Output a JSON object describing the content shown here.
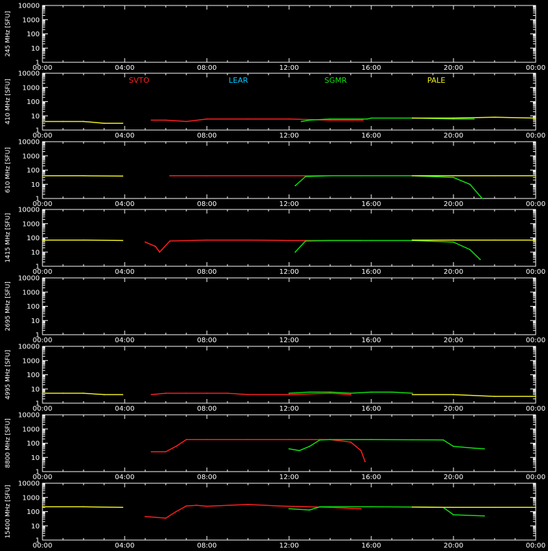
{
  "chart_data": {
    "type": "line",
    "background": "#000000",
    "grid": false,
    "x_ticks": [
      "00:00",
      "04:00",
      "08:00",
      "12:00",
      "16:00",
      "20:00",
      "00:00"
    ],
    "y_scale": "log",
    "y_ticks": [
      "1",
      "10",
      "100",
      "1000",
      "10000"
    ],
    "ylim": [
      1,
      10000
    ],
    "xlim_hours": [
      0,
      24
    ],
    "stations": [
      {
        "name": "SVTO",
        "color": "#ff2020"
      },
      {
        "name": "LEAR",
        "color": "#00c8ff"
      },
      {
        "name": "SGMR",
        "color": "#10e010"
      },
      {
        "name": "PALE",
        "color": "#f0f020"
      }
    ],
    "panels": [
      {
        "ylabel": "245 MHz [SFU]",
        "series": []
      },
      {
        "ylabel": "410 MHz [SFU]",
        "series": [
          {
            "station": "PALE",
            "points": [
              [
                0,
                4
              ],
              [
                1,
                4
              ],
              [
                2,
                4
              ],
              [
                3,
                3
              ],
              [
                3.9,
                3
              ]
            ]
          },
          {
            "station": "SVTO",
            "points": [
              [
                5.3,
                5
              ],
              [
                6,
                5
              ],
              [
                7,
                4
              ],
              [
                8,
                6
              ],
              [
                10,
                6
              ],
              [
                12,
                6
              ],
              [
                14,
                5
              ],
              [
                15.6,
                5
              ]
            ]
          },
          {
            "station": "SGMR",
            "points": [
              [
                12.6,
                4
              ],
              [
                13,
                5
              ],
              [
                14,
                6
              ],
              [
                15.8,
                6
              ],
              [
                16,
                7
              ],
              [
                18,
                7
              ],
              [
                20,
                6
              ],
              [
                21,
                6
              ]
            ]
          },
          {
            "station": "PALE",
            "points": [
              [
                18,
                7
              ],
              [
                20,
                7
              ],
              [
                22,
                8
              ],
              [
                24,
                7
              ]
            ]
          }
        ]
      },
      {
        "ylabel": "610 MHz [SFU]",
        "series": [
          {
            "station": "PALE",
            "points": [
              [
                0,
                40
              ],
              [
                2,
                40
              ],
              [
                3.9,
                38
              ]
            ]
          },
          {
            "station": "SVTO",
            "points": [
              [
                6.2,
                40
              ],
              [
                6.4,
                40
              ],
              [
                8,
                40
              ],
              [
                10,
                40
              ],
              [
                12,
                40
              ],
              [
                14,
                40
              ],
              [
                15.5,
                40
              ]
            ]
          },
          {
            "station": "SGMR",
            "points": [
              [
                12.3,
                8
              ],
              [
                12.8,
                35
              ],
              [
                14,
                40
              ],
              [
                16,
                40
              ],
              [
                18,
                40
              ],
              [
                20,
                30
              ],
              [
                20.8,
                10
              ],
              [
                21.4,
                1
              ]
            ]
          },
          {
            "station": "PALE",
            "points": [
              [
                18,
                40
              ],
              [
                20,
                40
              ],
              [
                22,
                40
              ],
              [
                24,
                40
              ]
            ]
          }
        ]
      },
      {
        "ylabel": "1415 MHz [SFU]",
        "series": [
          {
            "station": "PALE",
            "points": [
              [
                0,
                70
              ],
              [
                2,
                70
              ],
              [
                3.9,
                65
              ]
            ]
          },
          {
            "station": "SVTO",
            "points": [
              [
                5,
                50
              ],
              [
                5.5,
                25
              ],
              [
                5.7,
                10
              ],
              [
                6.2,
                60
              ],
              [
                8,
                70
              ],
              [
                10,
                70
              ],
              [
                12,
                65
              ],
              [
                15.5,
                65
              ]
            ]
          },
          {
            "station": "SGMR",
            "points": [
              [
                12.3,
                10
              ],
              [
                12.8,
                60
              ],
              [
                14,
                65
              ],
              [
                16,
                65
              ],
              [
                18,
                65
              ],
              [
                20,
                50
              ],
              [
                20.8,
                15
              ],
              [
                21.3,
                3
              ]
            ]
          },
          {
            "station": "PALE",
            "points": [
              [
                18,
                70
              ],
              [
                20,
                70
              ],
              [
                22,
                70
              ],
              [
                24,
                70
              ]
            ]
          }
        ]
      },
      {
        "ylabel": "2695 MHz [SFU]",
        "series": []
      },
      {
        "ylabel": "4995 MHz [SFU]",
        "series": [
          {
            "station": "PALE",
            "points": [
              [
                0,
                5
              ],
              [
                1,
                5
              ],
              [
                2,
                5
              ],
              [
                3,
                4
              ],
              [
                3.9,
                4
              ]
            ]
          },
          {
            "station": "SVTO",
            "points": [
              [
                5.3,
                4
              ],
              [
                6,
                5
              ],
              [
                7,
                5
              ],
              [
                8,
                5
              ],
              [
                9,
                5
              ],
              [
                10,
                4
              ],
              [
                12,
                4
              ],
              [
                14,
                5
              ],
              [
                15,
                4
              ]
            ]
          },
          {
            "station": "SGMR",
            "points": [
              [
                12,
                5
              ],
              [
                13,
                6
              ],
              [
                14,
                6
              ],
              [
                15,
                5
              ],
              [
                16,
                6
              ],
              [
                17,
                6
              ],
              [
                18,
                5
              ]
            ]
          },
          {
            "station": "PALE",
            "points": [
              [
                18,
                4
              ],
              [
                20,
                4
              ],
              [
                22,
                3
              ],
              [
                24,
                3
              ]
            ]
          }
        ]
      },
      {
        "ylabel": "8800 MHz [SFU]",
        "series": [
          {
            "station": "SVTO",
            "points": [
              [
                5.3,
                25
              ],
              [
                6,
                25
              ],
              [
                6.5,
                60
              ],
              [
                7,
                180
              ],
              [
                8,
                180
              ],
              [
                10,
                180
              ],
              [
                12,
                180
              ],
              [
                14,
                180
              ],
              [
                15,
                120
              ],
              [
                15.5,
                30
              ],
              [
                15.7,
                5
              ]
            ]
          },
          {
            "station": "SGMR",
            "points": [
              [
                12,
                40
              ],
              [
                12.5,
                30
              ],
              [
                13,
                60
              ],
              [
                13.5,
                170
              ],
              [
                14,
                180
              ],
              [
                16,
                180
              ],
              [
                18,
                175
              ],
              [
                19.5,
                170
              ],
              [
                20,
                60
              ],
              [
                21,
                45
              ],
              [
                21.5,
                40
              ]
            ]
          }
        ]
      },
      {
        "ylabel": "15400 MHz [SFU]",
        "series": [
          {
            "station": "PALE",
            "points": [
              [
                0,
                220
              ],
              [
                2,
                220
              ],
              [
                3.9,
                200
              ]
            ]
          },
          {
            "station": "SVTO",
            "points": [
              [
                5,
                45
              ],
              [
                5.5,
                40
              ],
              [
                6,
                35
              ],
              [
                6.5,
                100
              ],
              [
                7,
                250
              ],
              [
                7.5,
                280
              ],
              [
                8,
                240
              ],
              [
                10,
                320
              ],
              [
                11.5,
                250
              ],
              [
                14,
                200
              ],
              [
                15.5,
                160
              ]
            ]
          },
          {
            "station": "SGMR",
            "points": [
              [
                12,
                160
              ],
              [
                13,
                130
              ],
              [
                13.5,
                220
              ],
              [
                14,
                220
              ],
              [
                16,
                220
              ],
              [
                18,
                210
              ],
              [
                19.5,
                200
              ],
              [
                20,
                60
              ],
              [
                21.5,
                50
              ]
            ]
          },
          {
            "station": "PALE",
            "points": [
              [
                18,
                210
              ],
              [
                20,
                200
              ],
              [
                22,
                200
              ],
              [
                24,
                200
              ]
            ]
          }
        ]
      }
    ]
  }
}
